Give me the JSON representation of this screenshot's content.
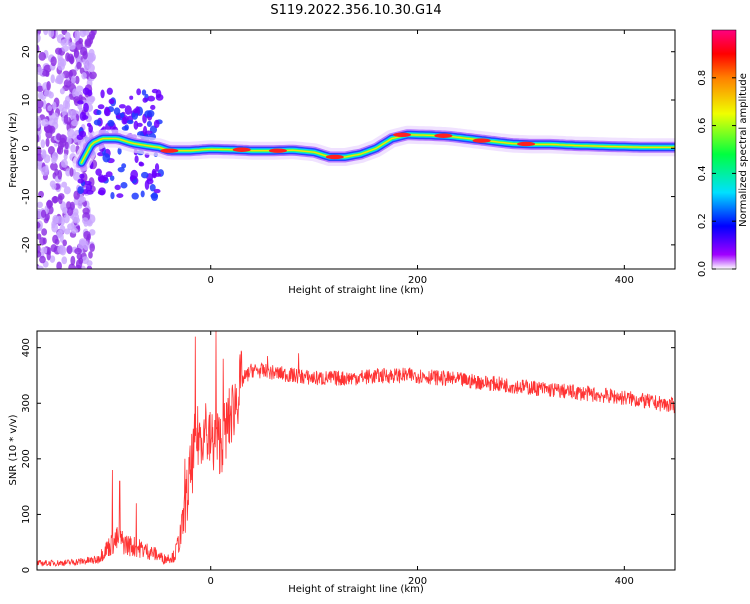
{
  "title": "S119.2022.356.10.30.G14",
  "chart_data": [
    {
      "type": "heatmap",
      "xlabel": "Height of straight line (km)",
      "ylabel": "Frequency (Hz)",
      "xlim": [
        -168,
        449
      ],
      "ylim": [
        -25,
        24.5
      ],
      "xticks": [
        0,
        200,
        400
      ],
      "yticks": [
        -20,
        -10,
        0,
        10,
        20
      ],
      "colorbar": {
        "label": "Normalized spectral amplitude",
        "ticks": [
          0.0,
          0.2,
          0.4,
          0.6,
          0.8
        ],
        "range": [
          0,
          1
        ]
      },
      "ridge": [
        [
          -125,
          -3
        ],
        [
          -115,
          1
        ],
        [
          -105,
          2
        ],
        [
          -90,
          2
        ],
        [
          -75,
          1
        ],
        [
          -60,
          0.5
        ],
        [
          -50,
          0.2
        ],
        [
          -40,
          -0.5
        ],
        [
          -20,
          -0.5
        ],
        [
          0,
          -0.2
        ],
        [
          20,
          -0.3
        ],
        [
          40,
          -0.5
        ],
        [
          60,
          -0.5
        ],
        [
          80,
          -0.4
        ],
        [
          100,
          -0.8
        ],
        [
          115,
          -1.8
        ],
        [
          130,
          -1.8
        ],
        [
          145,
          -1.2
        ],
        [
          160,
          0
        ],
        [
          175,
          2
        ],
        [
          190,
          2.8
        ],
        [
          210,
          2.7
        ],
        [
          230,
          2.5
        ],
        [
          250,
          2
        ],
        [
          270,
          1.5
        ],
        [
          290,
          1
        ],
        [
          310,
          0.8
        ],
        [
          330,
          0.8
        ],
        [
          350,
          0.6
        ],
        [
          380,
          0.4
        ],
        [
          420,
          0.2
        ],
        [
          449,
          0.2
        ]
      ],
      "hot_spots": [
        [
          -40,
          -0.5
        ],
        [
          30,
          -0.3
        ],
        [
          65,
          -0.5
        ],
        [
          120,
          -1.8
        ],
        [
          185,
          2.8
        ],
        [
          225,
          2.6
        ],
        [
          262,
          1.6
        ],
        [
          305,
          0.9
        ]
      ]
    },
    {
      "type": "line",
      "xlabel": "Height of straight line (km)",
      "ylabel": "SNR (10 * v/v)",
      "xlim": [
        -168,
        449
      ],
      "ylim": [
        0,
        430
      ],
      "xticks": [
        0,
        200,
        400
      ],
      "yticks": [
        0,
        100,
        200,
        300,
        400
      ],
      "series": [
        {
          "color": "#ff3333",
          "trend": [
            [
              -168,
              12
            ],
            [
              -140,
              13
            ],
            [
              -110,
              18
            ],
            [
              -100,
              40
            ],
            [
              -90,
              55
            ],
            [
              -80,
              45
            ],
            [
              -70,
              40
            ],
            [
              -55,
              30
            ],
            [
              -45,
              20
            ],
            [
              -35,
              25
            ],
            [
              -28,
              70
            ],
            [
              -22,
              140
            ],
            [
              -15,
              230
            ],
            [
              -8,
              250
            ],
            [
              0,
              230
            ],
            [
              10,
              230
            ],
            [
              20,
              280
            ],
            [
              30,
              340
            ],
            [
              40,
              360
            ],
            [
              60,
              355
            ],
            [
              80,
              350
            ],
            [
              100,
              345
            ],
            [
              130,
              345
            ],
            [
              170,
              350
            ],
            [
              200,
              350
            ],
            [
              250,
              340
            ],
            [
              300,
              330
            ],
            [
              350,
              320
            ],
            [
              400,
              310
            ],
            [
              449,
              295
            ]
          ],
          "spikes": [
            [
              -95,
              180
            ],
            [
              -88,
              160
            ],
            [
              -72,
              120
            ],
            [
              -25,
              200
            ],
            [
              -15,
              420
            ],
            [
              -5,
              300
            ],
            [
              5,
              430
            ],
            [
              12,
              380
            ],
            [
              55,
              385
            ],
            [
              85,
              390
            ]
          ]
        }
      ]
    }
  ]
}
